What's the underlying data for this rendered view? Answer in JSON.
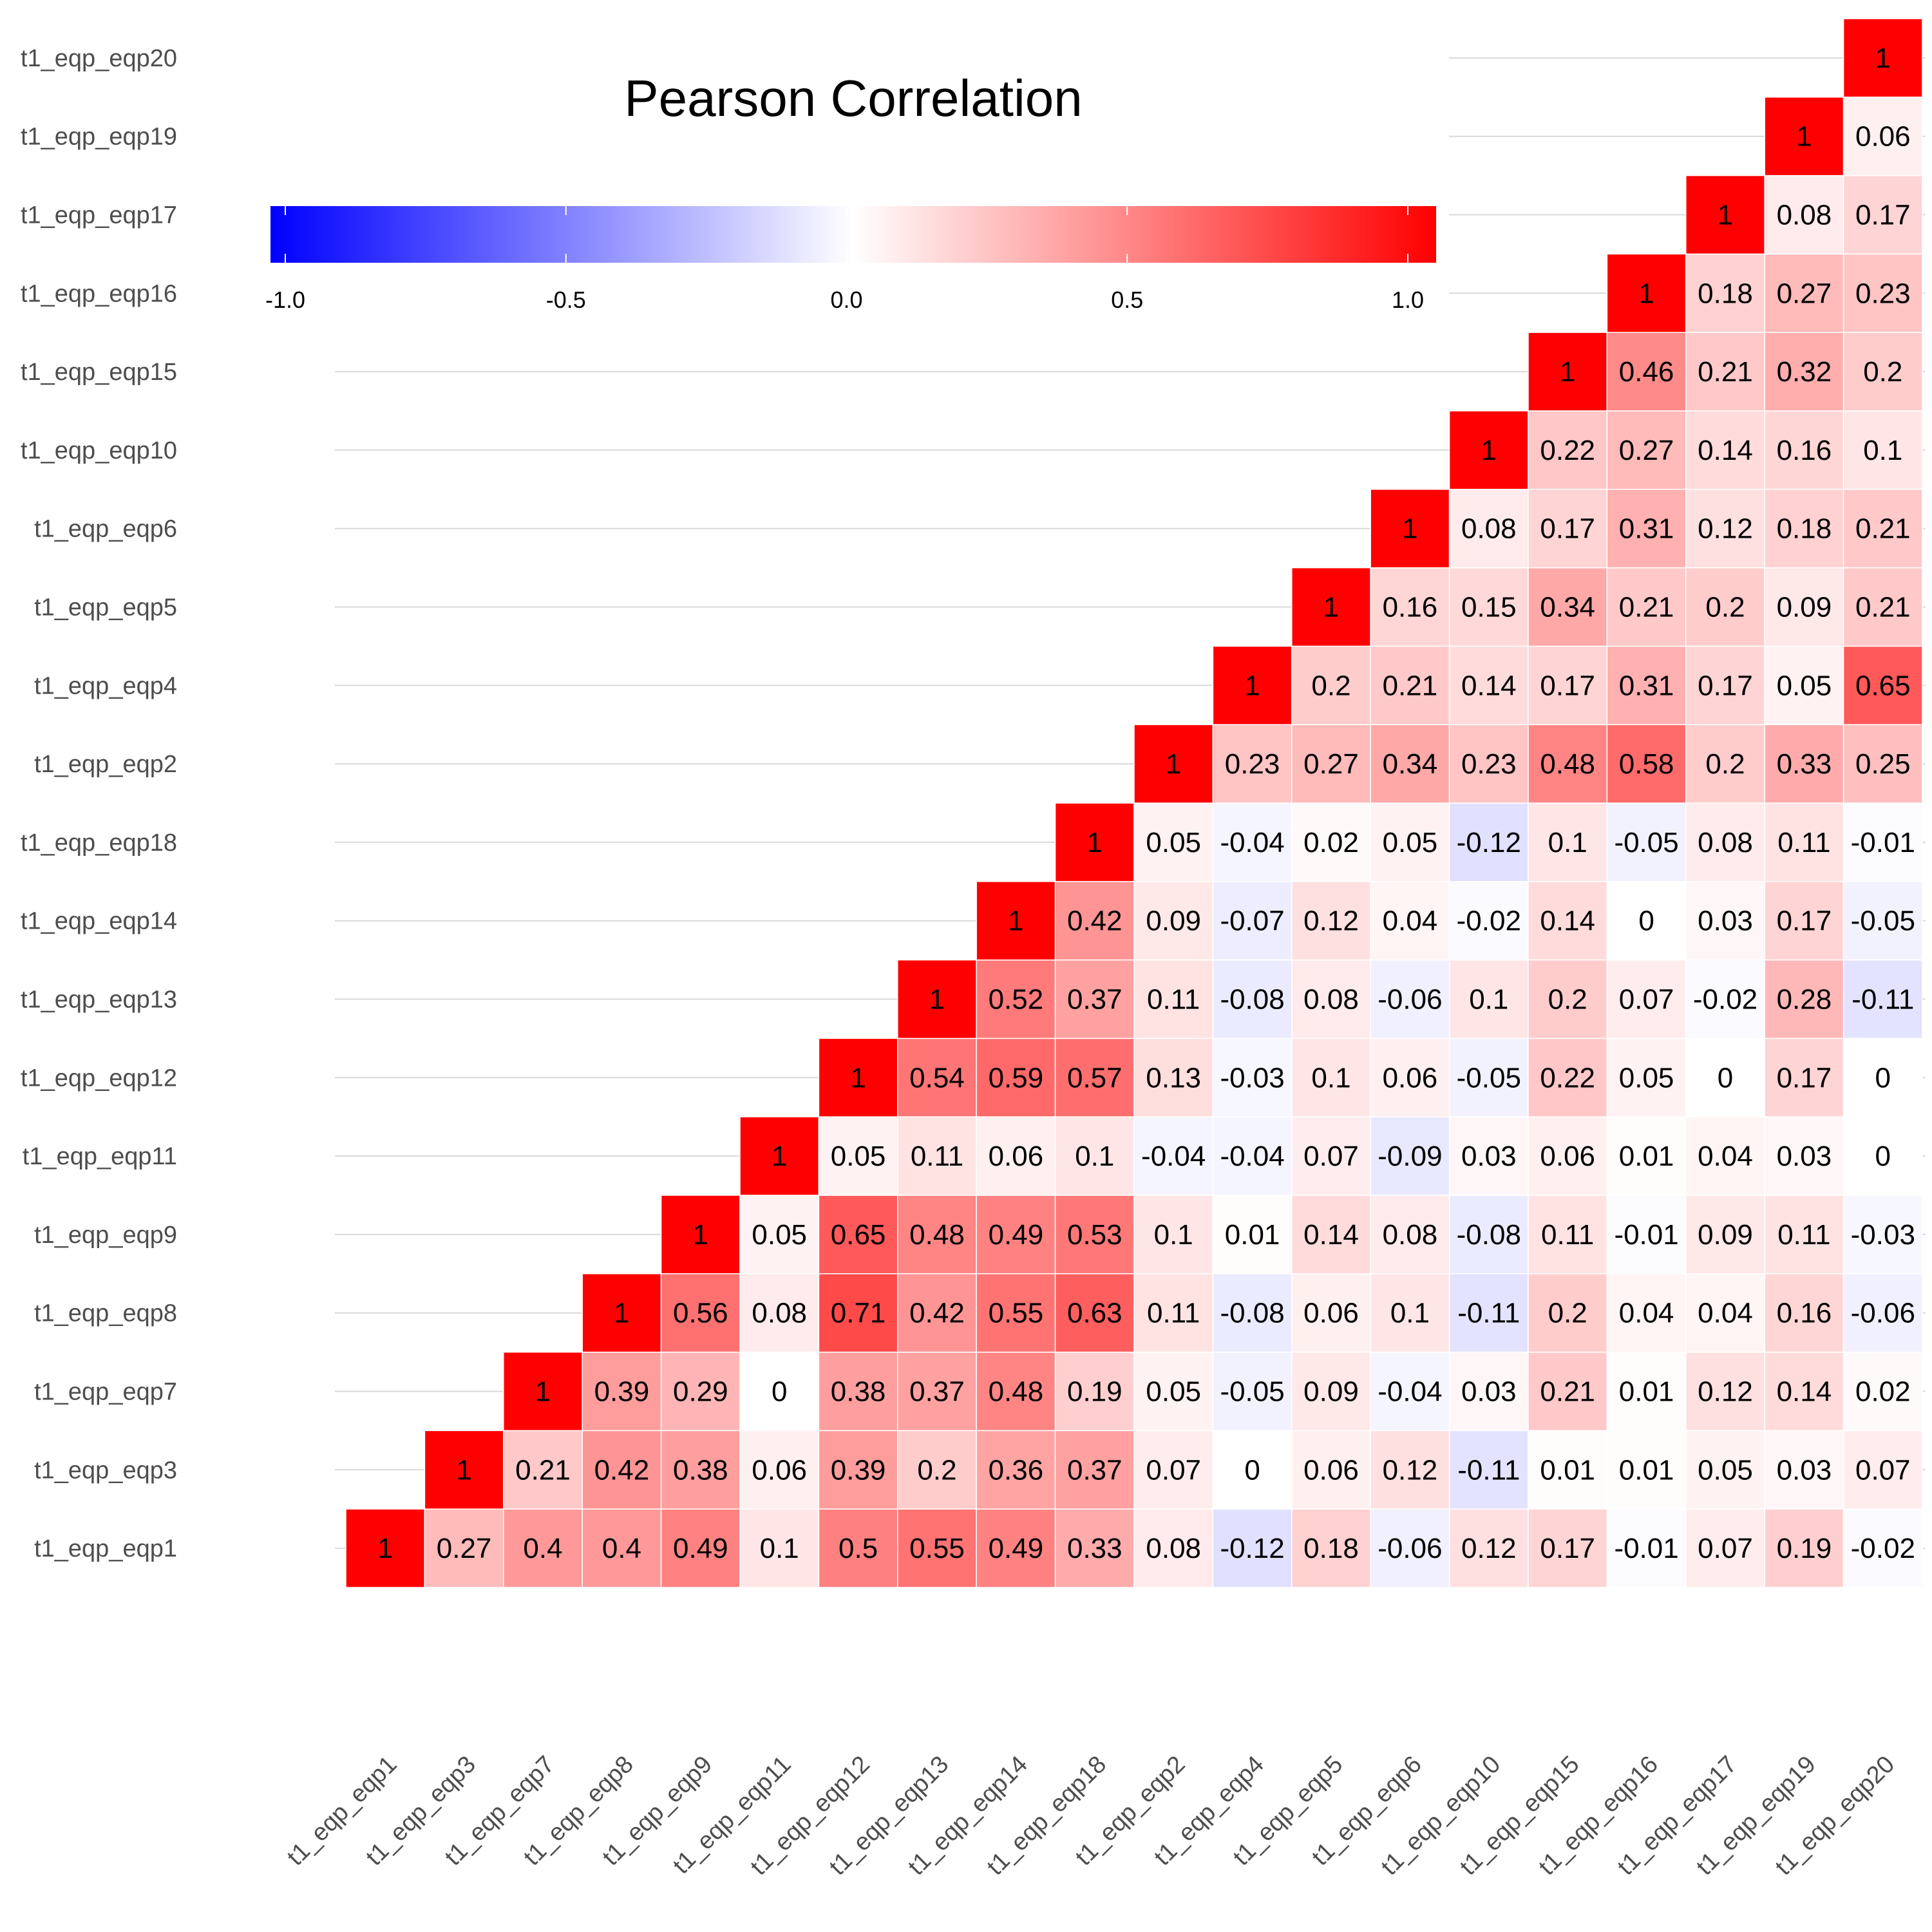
{
  "chart_data": {
    "type": "heatmap",
    "title": "Pearson Correlation",
    "variables": [
      "t1_eqp_eqp1",
      "t1_eqp_eqp3",
      "t1_eqp_eqp7",
      "t1_eqp_eqp8",
      "t1_eqp_eqp9",
      "t1_eqp_eqp11",
      "t1_eqp_eqp12",
      "t1_eqp_eqp13",
      "t1_eqp_eqp14",
      "t1_eqp_eqp18",
      "t1_eqp_eqp2",
      "t1_eqp_eqp4",
      "t1_eqp_eqp5",
      "t1_eqp_eqp6",
      "t1_eqp_eqp10",
      "t1_eqp_eqp15",
      "t1_eqp_eqp16",
      "t1_eqp_eqp17",
      "t1_eqp_eqp19",
      "t1_eqp_eqp20"
    ],
    "rows": [
      [
        "1",
        "0.27",
        "0.4",
        "0.4",
        "0.49",
        "0.1",
        "0.5",
        "0.55",
        "0.49",
        "0.33",
        "0.08",
        "-0.12",
        "0.18",
        "-0.06",
        "0.12",
        "0.17",
        "-0.01",
        "0.07",
        "0.19",
        "-0.02"
      ],
      [
        "1",
        "0.21",
        "0.42",
        "0.38",
        "0.06",
        "0.39",
        "0.2",
        "0.36",
        "0.37",
        "0.07",
        "0",
        "0.06",
        "0.12",
        "-0.11",
        "0.01",
        "0.01",
        "0.05",
        "0.03",
        "0.07"
      ],
      [
        "1",
        "0.39",
        "0.29",
        "0",
        "0.38",
        "0.37",
        "0.48",
        "0.19",
        "0.05",
        "-0.05",
        "0.09",
        "-0.04",
        "0.03",
        "0.21",
        "0.01",
        "0.12",
        "0.14",
        "0.02"
      ],
      [
        "1",
        "0.56",
        "0.08",
        "0.71",
        "0.42",
        "0.55",
        "0.63",
        "0.11",
        "-0.08",
        "0.06",
        "0.1",
        "-0.11",
        "0.2",
        "0.04",
        "0.04",
        "0.16",
        "-0.06"
      ],
      [
        "1",
        "0.05",
        "0.65",
        "0.48",
        "0.49",
        "0.53",
        "0.1",
        "0.01",
        "0.14",
        "0.08",
        "-0.08",
        "0.11",
        "-0.01",
        "0.09",
        "0.11",
        "-0.03"
      ],
      [
        "1",
        "0.05",
        "0.11",
        "0.06",
        "0.1",
        "-0.04",
        "-0.04",
        "0.07",
        "-0.09",
        "0.03",
        "0.06",
        "0.01",
        "0.04",
        "0.03",
        "0"
      ],
      [
        "1",
        "0.54",
        "0.59",
        "0.57",
        "0.13",
        "-0.03",
        "0.1",
        "0.06",
        "-0.05",
        "0.22",
        "0.05",
        "0",
        "0.17",
        "0"
      ],
      [
        "1",
        "0.52",
        "0.37",
        "0.11",
        "-0.08",
        "0.08",
        "-0.06",
        "0.1",
        "0.2",
        "0.07",
        "-0.02",
        "0.28",
        "-0.11"
      ],
      [
        "1",
        "0.42",
        "0.09",
        "-0.07",
        "0.12",
        "0.04",
        "-0.02",
        "0.14",
        "0",
        "0.03",
        "0.17",
        "-0.05"
      ],
      [
        "1",
        "0.05",
        "-0.04",
        "0.02",
        "0.05",
        "-0.12",
        "0.1",
        "-0.05",
        "0.08",
        "0.11",
        "-0.01"
      ],
      [
        "1",
        "0.23",
        "0.27",
        "0.34",
        "0.23",
        "0.48",
        "0.58",
        "0.2",
        "0.33",
        "0.25"
      ],
      [
        "1",
        "0.2",
        "0.21",
        "0.14",
        "0.17",
        "0.31",
        "0.17",
        "0.05",
        "0.65"
      ],
      [
        "1",
        "0.16",
        "0.15",
        "0.34",
        "0.21",
        "0.2",
        "0.09",
        "0.21"
      ],
      [
        "1",
        "0.08",
        "0.17",
        "0.31",
        "0.12",
        "0.18",
        "0.21"
      ],
      [
        "1",
        "0.22",
        "0.27",
        "0.14",
        "0.16",
        "0.1"
      ],
      [
        "1",
        "0.46",
        "0.21",
        "0.32",
        "0.2"
      ],
      [
        "1",
        "0.18",
        "0.27",
        "0.23"
      ],
      [
        "1",
        "0.08",
        "0.17"
      ],
      [
        "1",
        "0.06"
      ],
      [
        "1"
      ]
    ],
    "legend": {
      "ticks": [
        "-1.0",
        "-0.5",
        "0.0",
        "0.5",
        "1.0"
      ],
      "tick_values": [
        -1,
        -0.5,
        0,
        0.5,
        1
      ],
      "range": [
        -1,
        1
      ],
      "colors": {
        "low": "#0000ff",
        "mid": "#ffffff",
        "high": "#ff0000"
      },
      "position": "top-left"
    },
    "grid": true
  }
}
